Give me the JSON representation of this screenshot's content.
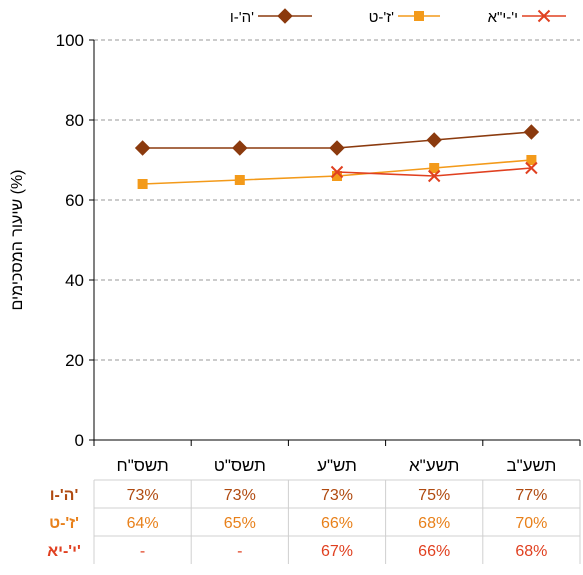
{
  "chart_data": {
    "type": "line",
    "categories": [
      "תשס\"ח",
      "תשס\"ט",
      "תש\"ע",
      "תשע\"א",
      "תשע\"ב"
    ],
    "ylabel": "שיעור המסכימים (%)",
    "ylim": [
      0,
      100
    ],
    "yticks": [
      0,
      20,
      40,
      60,
      80,
      100
    ],
    "grid": true,
    "legend_position": "top",
    "series": [
      {
        "name": "ה'-ו'",
        "values": [
          73,
          73,
          73,
          75,
          77
        ],
        "color": "#8B3A0E",
        "marker": "diamond"
      },
      {
        "name": "ז'-ט'",
        "values": [
          64,
          65,
          66,
          68,
          70
        ],
        "color": "#F39A1A",
        "marker": "square"
      },
      {
        "name": "י'-י\"א",
        "values": [
          null,
          null,
          67,
          66,
          68
        ],
        "color": "#E04020",
        "marker": "x"
      }
    ],
    "table": {
      "rows": [
        {
          "label": "ה'-ו'",
          "color": "#B04A10",
          "cells": [
            "73%",
            "73%",
            "73%",
            "75%",
            "77%"
          ]
        },
        {
          "label": "ז'-ט'",
          "color": "#E8801A",
          "cells": [
            "64%",
            "65%",
            "66%",
            "68%",
            "70%"
          ]
        },
        {
          "label": "י'-יא'",
          "color": "#E04020",
          "cells": [
            "-",
            "-",
            "67%",
            "66%",
            "68%"
          ]
        }
      ]
    }
  }
}
